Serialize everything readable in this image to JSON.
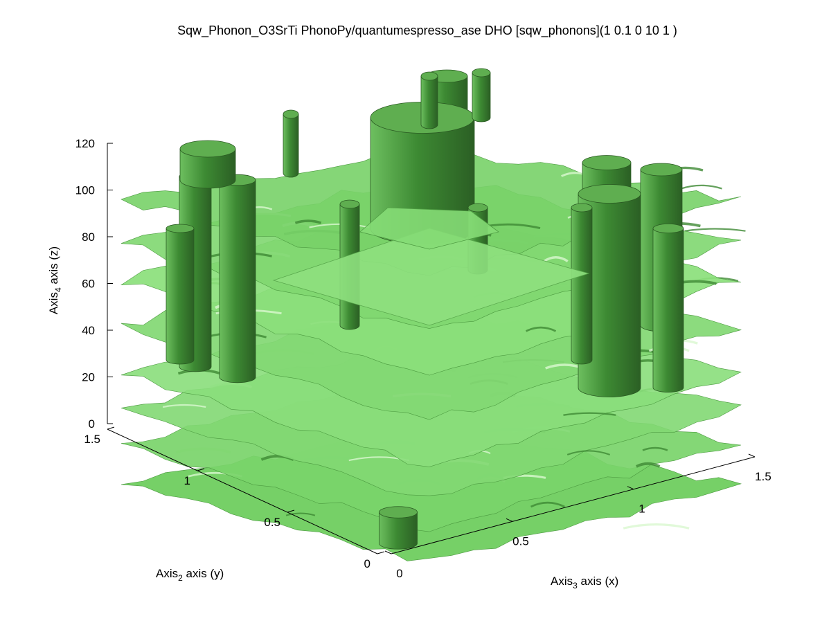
{
  "chart_data": {
    "type": "3d-isosurface",
    "title": "Sqw_Phonon_O3SrTi PhonoPy/quantumespresso_ase DHO [sqw_phonons](1 0.1 0 10 1 )",
    "xlabel": {
      "main": "Axis",
      "sub": "3",
      "rest": " axis (x)"
    },
    "ylabel": {
      "main": "Axis",
      "sub": "2",
      "rest": " axis (y)"
    },
    "zlabel": {
      "main": "Axis",
      "sub": "4",
      "rest": " axis (z)"
    },
    "xlim": [
      0,
      1.5
    ],
    "ylim": [
      0,
      1.5
    ],
    "zlim": [
      0,
      120
    ],
    "x_ticks": [
      "0",
      "0.5",
      "1",
      "1.5"
    ],
    "y_ticks": [
      "0",
      "0.5",
      "1",
      "1.5"
    ],
    "z_ticks": [
      "0",
      "20",
      "40",
      "60",
      "80",
      "100",
      "120"
    ],
    "surface_color": "#6fce5f",
    "surface_shadow_color": "#2f6b26",
    "grid": false,
    "legend": "none"
  }
}
